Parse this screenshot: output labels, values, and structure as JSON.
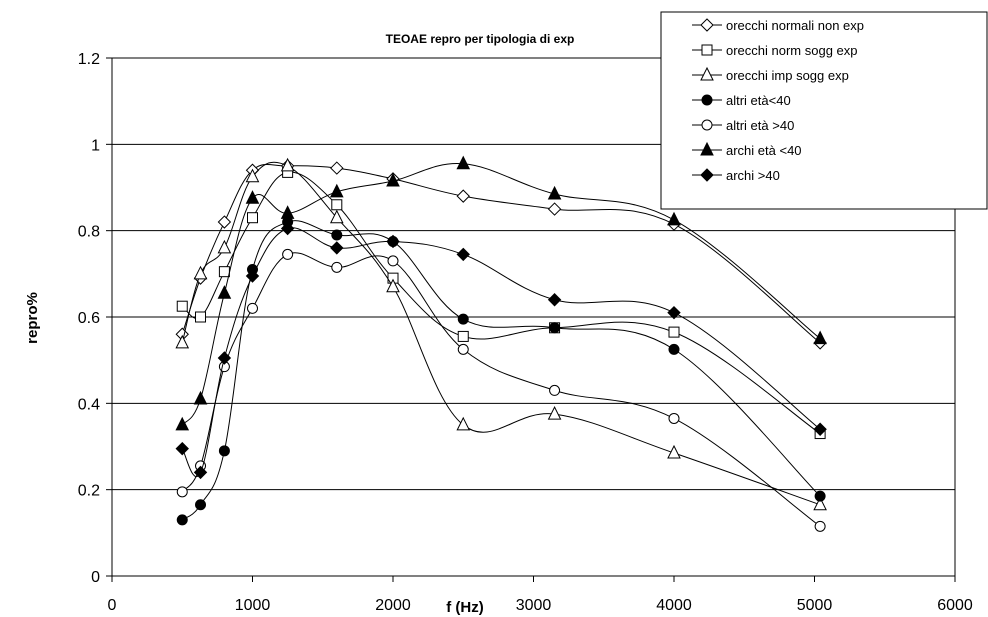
{
  "chart_data": {
    "type": "line",
    "title": "TEOAE repro per tipologia di exp",
    "xlabel": "f (Hz)",
    "ylabel": "repro%",
    "xlim": [
      0,
      6000
    ],
    "ylim": [
      0,
      1.2
    ],
    "x_ticks": [
      "0",
      "1000",
      "2000",
      "3000",
      "4000",
      "5000",
      "6000"
    ],
    "y_ticks": [
      "0",
      "0.2",
      "0.4",
      "0.6",
      "0.8",
      "1",
      "1.2"
    ],
    "grid": "horizontal",
    "legend_position": "top-right",
    "x": [
      500,
      630,
      800,
      1000,
      1250,
      1600,
      2000,
      2500,
      3150,
      4000,
      5040
    ],
    "series": [
      {
        "name": "orecchi normali non exp",
        "marker": "diamond-open",
        "values": [
          0.56,
          0.69,
          0.82,
          0.94,
          0.95,
          0.945,
          0.92,
          0.88,
          0.85,
          0.815,
          0.54
        ]
      },
      {
        "name": "orecchi norm sogg exp",
        "marker": "square-open",
        "values": [
          0.625,
          0.6,
          0.705,
          0.83,
          0.935,
          0.86,
          0.69,
          0.555,
          0.575,
          0.565,
          0.33
        ]
      },
      {
        "name": "orecchi imp sogg exp",
        "marker": "triangle-open",
        "values": [
          0.54,
          0.7,
          0.76,
          0.925,
          0.95,
          0.83,
          0.67,
          0.35,
          0.375,
          0.285,
          0.165
        ]
      },
      {
        "name": "altri età<40",
        "marker": "circle-filled",
        "values": [
          0.13,
          0.165,
          0.29,
          0.71,
          0.82,
          0.79,
          0.775,
          0.595,
          0.575,
          0.525,
          0.185
        ]
      },
      {
        "name": "altri età >40",
        "marker": "circle-open",
        "values": [
          0.195,
          0.255,
          0.485,
          0.62,
          0.745,
          0.715,
          0.73,
          0.525,
          0.43,
          0.365,
          0.115
        ]
      },
      {
        "name": "archi età <40",
        "marker": "triangle-filled",
        "values": [
          0.35,
          0.41,
          0.655,
          0.875,
          0.84,
          0.89,
          0.915,
          0.955,
          0.885,
          0.825,
          0.55
        ]
      },
      {
        "name": "archi >40",
        "marker": "diamond-filled",
        "values": [
          0.295,
          0.24,
          0.505,
          0.695,
          0.805,
          0.76,
          0.775,
          0.745,
          0.64,
          0.61,
          0.34
        ]
      }
    ]
  }
}
